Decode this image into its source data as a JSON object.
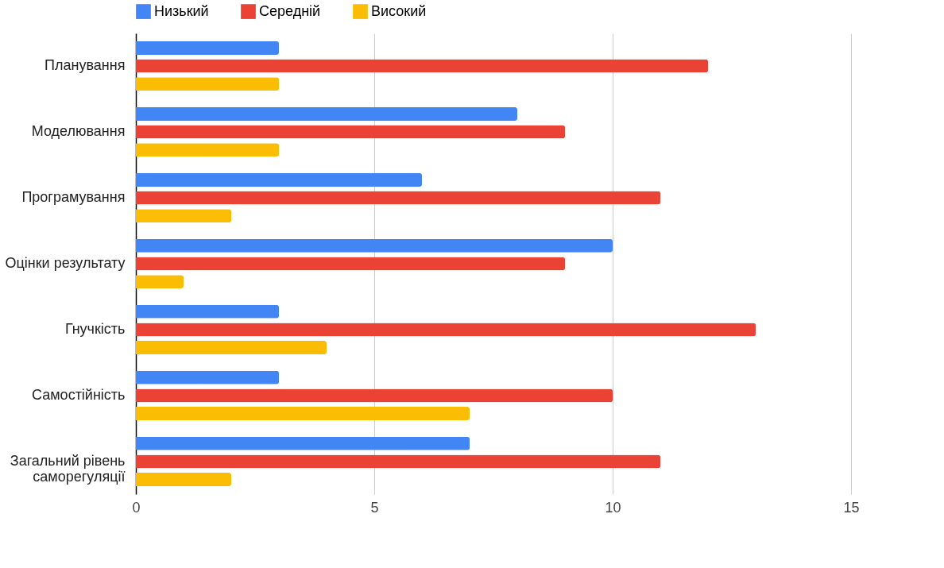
{
  "chart_data": {
    "type": "bar",
    "orientation": "horizontal",
    "categories": [
      "Планування",
      "Моделювання",
      "Програмування",
      "Оцінки результату",
      "Гнучкість",
      "Самостійність",
      "Загальний рівень саморегуляції"
    ],
    "series": [
      {
        "name": "Низький",
        "color": "#4285f4",
        "values": [
          3,
          8,
          6,
          10,
          3,
          3,
          7
        ]
      },
      {
        "name": "Середній",
        "color": "#ea4335",
        "values": [
          12,
          9,
          11,
          9,
          13,
          10,
          11
        ]
      },
      {
        "name": "Високий",
        "color": "#fbbc04",
        "values": [
          3,
          3,
          2,
          1,
          4,
          7,
          2
        ]
      }
    ],
    "xlim": [
      0,
      15
    ],
    "xticks": [
      0,
      5,
      10,
      15
    ],
    "grid": "x",
    "legend": "top"
  }
}
